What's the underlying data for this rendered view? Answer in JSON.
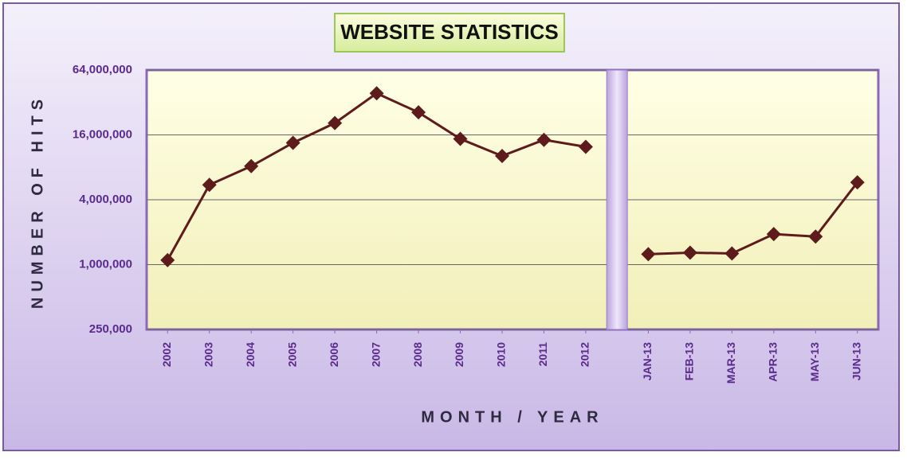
{
  "chart_data": {
    "type": "line",
    "title": "WEBSITE STATISTICS",
    "x_label": "MONTH / YEAR",
    "y_label": "NUMBER OF HITS",
    "categories": [
      "2002",
      "2003",
      "2004",
      "2005",
      "2006",
      "2007",
      "2008",
      "2009",
      "2010",
      "2011",
      "2012",
      null,
      "JAN-13",
      "FEB-13",
      "MAR-13",
      "APR-13",
      "MAY-13",
      "JUN-13"
    ],
    "values": [
      1100000,
      5500000,
      8200000,
      13500000,
      20600000,
      38900000,
      25900000,
      14700000,
      10200000,
      14400000,
      12400000,
      null,
      1250000,
      1290000,
      1270000,
      1920000,
      1820000,
      5800000
    ],
    "color": "#5e1b1b",
    "log_scale": true,
    "ylim": [
      250000,
      64000000
    ],
    "yticks": [
      {
        "value": 250000,
        "label": "250,000"
      },
      {
        "value": 1000000,
        "label": "1,000,000"
      },
      {
        "value": 4000000,
        "label": "4,000,000"
      },
      {
        "value": 16000000,
        "label": "16,000,000"
      },
      {
        "value": 64000000,
        "label": "64,000,000"
      }
    ],
    "grid": true
  }
}
